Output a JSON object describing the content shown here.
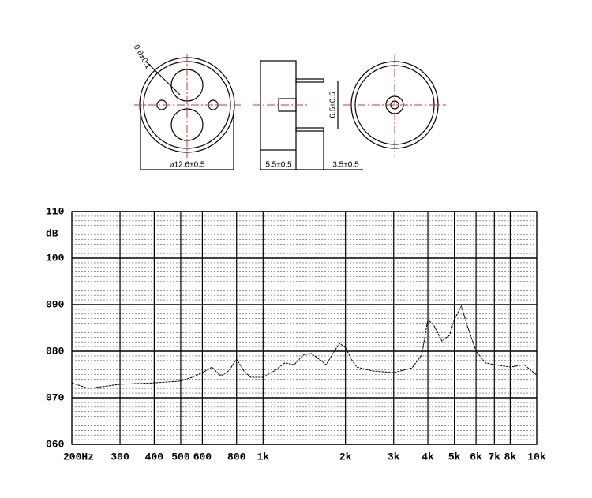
{
  "drawing": {
    "labels": [
      "0.8±0.1",
      "ø12.6±0.5",
      "5.5±0.5",
      "6.5±0.5",
      "3.5±0.5"
    ]
  },
  "chart_data": {
    "type": "line",
    "y_label": "dB",
    "log_x": true,
    "grid": true,
    "color": "#000000",
    "x": [
      200,
      230,
      260,
      300,
      400,
      500,
      550,
      600,
      650,
      700,
      750,
      800,
      850,
      900,
      1000,
      1100,
      1200,
      1300,
      1400,
      1500,
      1600,
      1700,
      1800,
      1900,
      2000,
      2100,
      2200,
      2500,
      3000,
      3500,
      3800,
      4000,
      4200,
      4500,
      4800,
      5000,
      5300,
      5600,
      6000,
      6500,
      7000,
      8000,
      9000,
      10000
    ],
    "values": [
      73.2,
      72.0,
      72.4,
      72.9,
      73.2,
      73.6,
      74.4,
      75.4,
      76.6,
      74.7,
      75.8,
      78.3,
      75.8,
      74.4,
      74.4,
      75.8,
      77.5,
      77.1,
      79.2,
      79.5,
      78.3,
      77.1,
      79.5,
      81.7,
      80.8,
      78.3,
      76.6,
      75.8,
      75.4,
      76.4,
      79.2,
      86.8,
      85.6,
      82.2,
      83.4,
      86.8,
      89.7,
      85.1,
      80.0,
      77.5,
      77.1,
      76.6,
      77.1,
      74.9
    ],
    "xlim": [
      200,
      10000
    ],
    "xticks": [
      {
        "value": 200,
        "label": "200Hz"
      },
      300,
      400,
      500,
      600,
      800,
      {
        "value": 1000,
        "label": "1k"
      },
      {
        "value": 2000,
        "label": "2k"
      },
      {
        "value": 3000,
        "label": "3k"
      },
      {
        "value": 4000,
        "label": "4k"
      },
      {
        "value": 5000,
        "label": "5k"
      },
      {
        "value": 6000,
        "label": "6k"
      },
      {
        "value": 7000,
        "label": "7k"
      },
      {
        "value": 8000,
        "label": "8k"
      },
      {
        "value": 10000,
        "label": "10k"
      }
    ],
    "ylim": [
      60,
      110
    ],
    "yticks": [
      {
        "value": 60,
        "label": "060"
      },
      {
        "value": 70,
        "label": "070"
      },
      {
        "value": 80,
        "label": "080"
      },
      {
        "value": 90,
        "label": "090"
      },
      100,
      110
    ]
  }
}
